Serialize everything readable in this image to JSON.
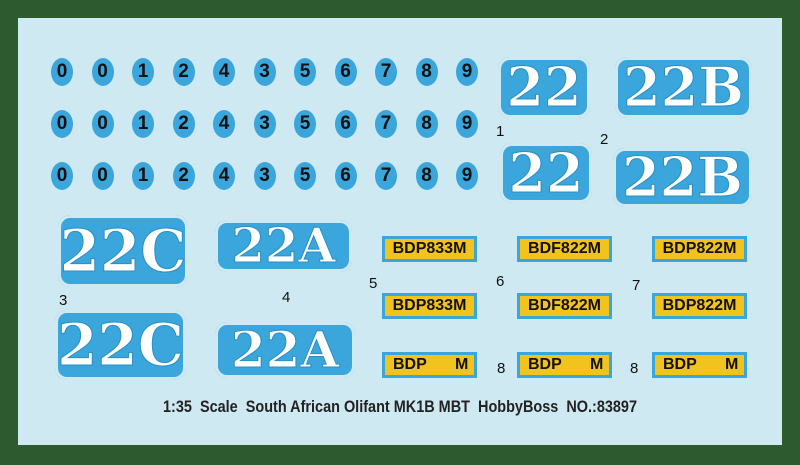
{
  "digit_rows": [
    [
      "0",
      "0",
      "1",
      "2",
      "4",
      "3",
      "5",
      "6",
      "7",
      "8",
      "9"
    ],
    [
      "0",
      "0",
      "1",
      "2",
      "4",
      "3",
      "5",
      "6",
      "7",
      "8",
      "9"
    ],
    [
      "0",
      "0",
      "1",
      "2",
      "4",
      "3",
      "5",
      "6",
      "7",
      "8",
      "9"
    ]
  ],
  "big_decals": [
    "22",
    "22B",
    "22",
    "22B",
    "22C",
    "22A",
    "22C",
    "22A"
  ],
  "markers": [
    "1",
    "2",
    "3",
    "4",
    "5",
    "6",
    "7",
    "8",
    "8"
  ],
  "plates": [
    [
      "BDP833M",
      "BDF822M",
      "BDP822M"
    ],
    [
      "BDP833M",
      "BDF822M",
      "BDP822M"
    ]
  ],
  "partial_plates": [
    [
      "BDP",
      "M"
    ],
    [
      "BDP",
      "M"
    ],
    [
      "BDP",
      "M"
    ]
  ],
  "caption": "1:35  Scale  South African Olifant MK1B MBT  HobbyBoss  NO.:83897"
}
